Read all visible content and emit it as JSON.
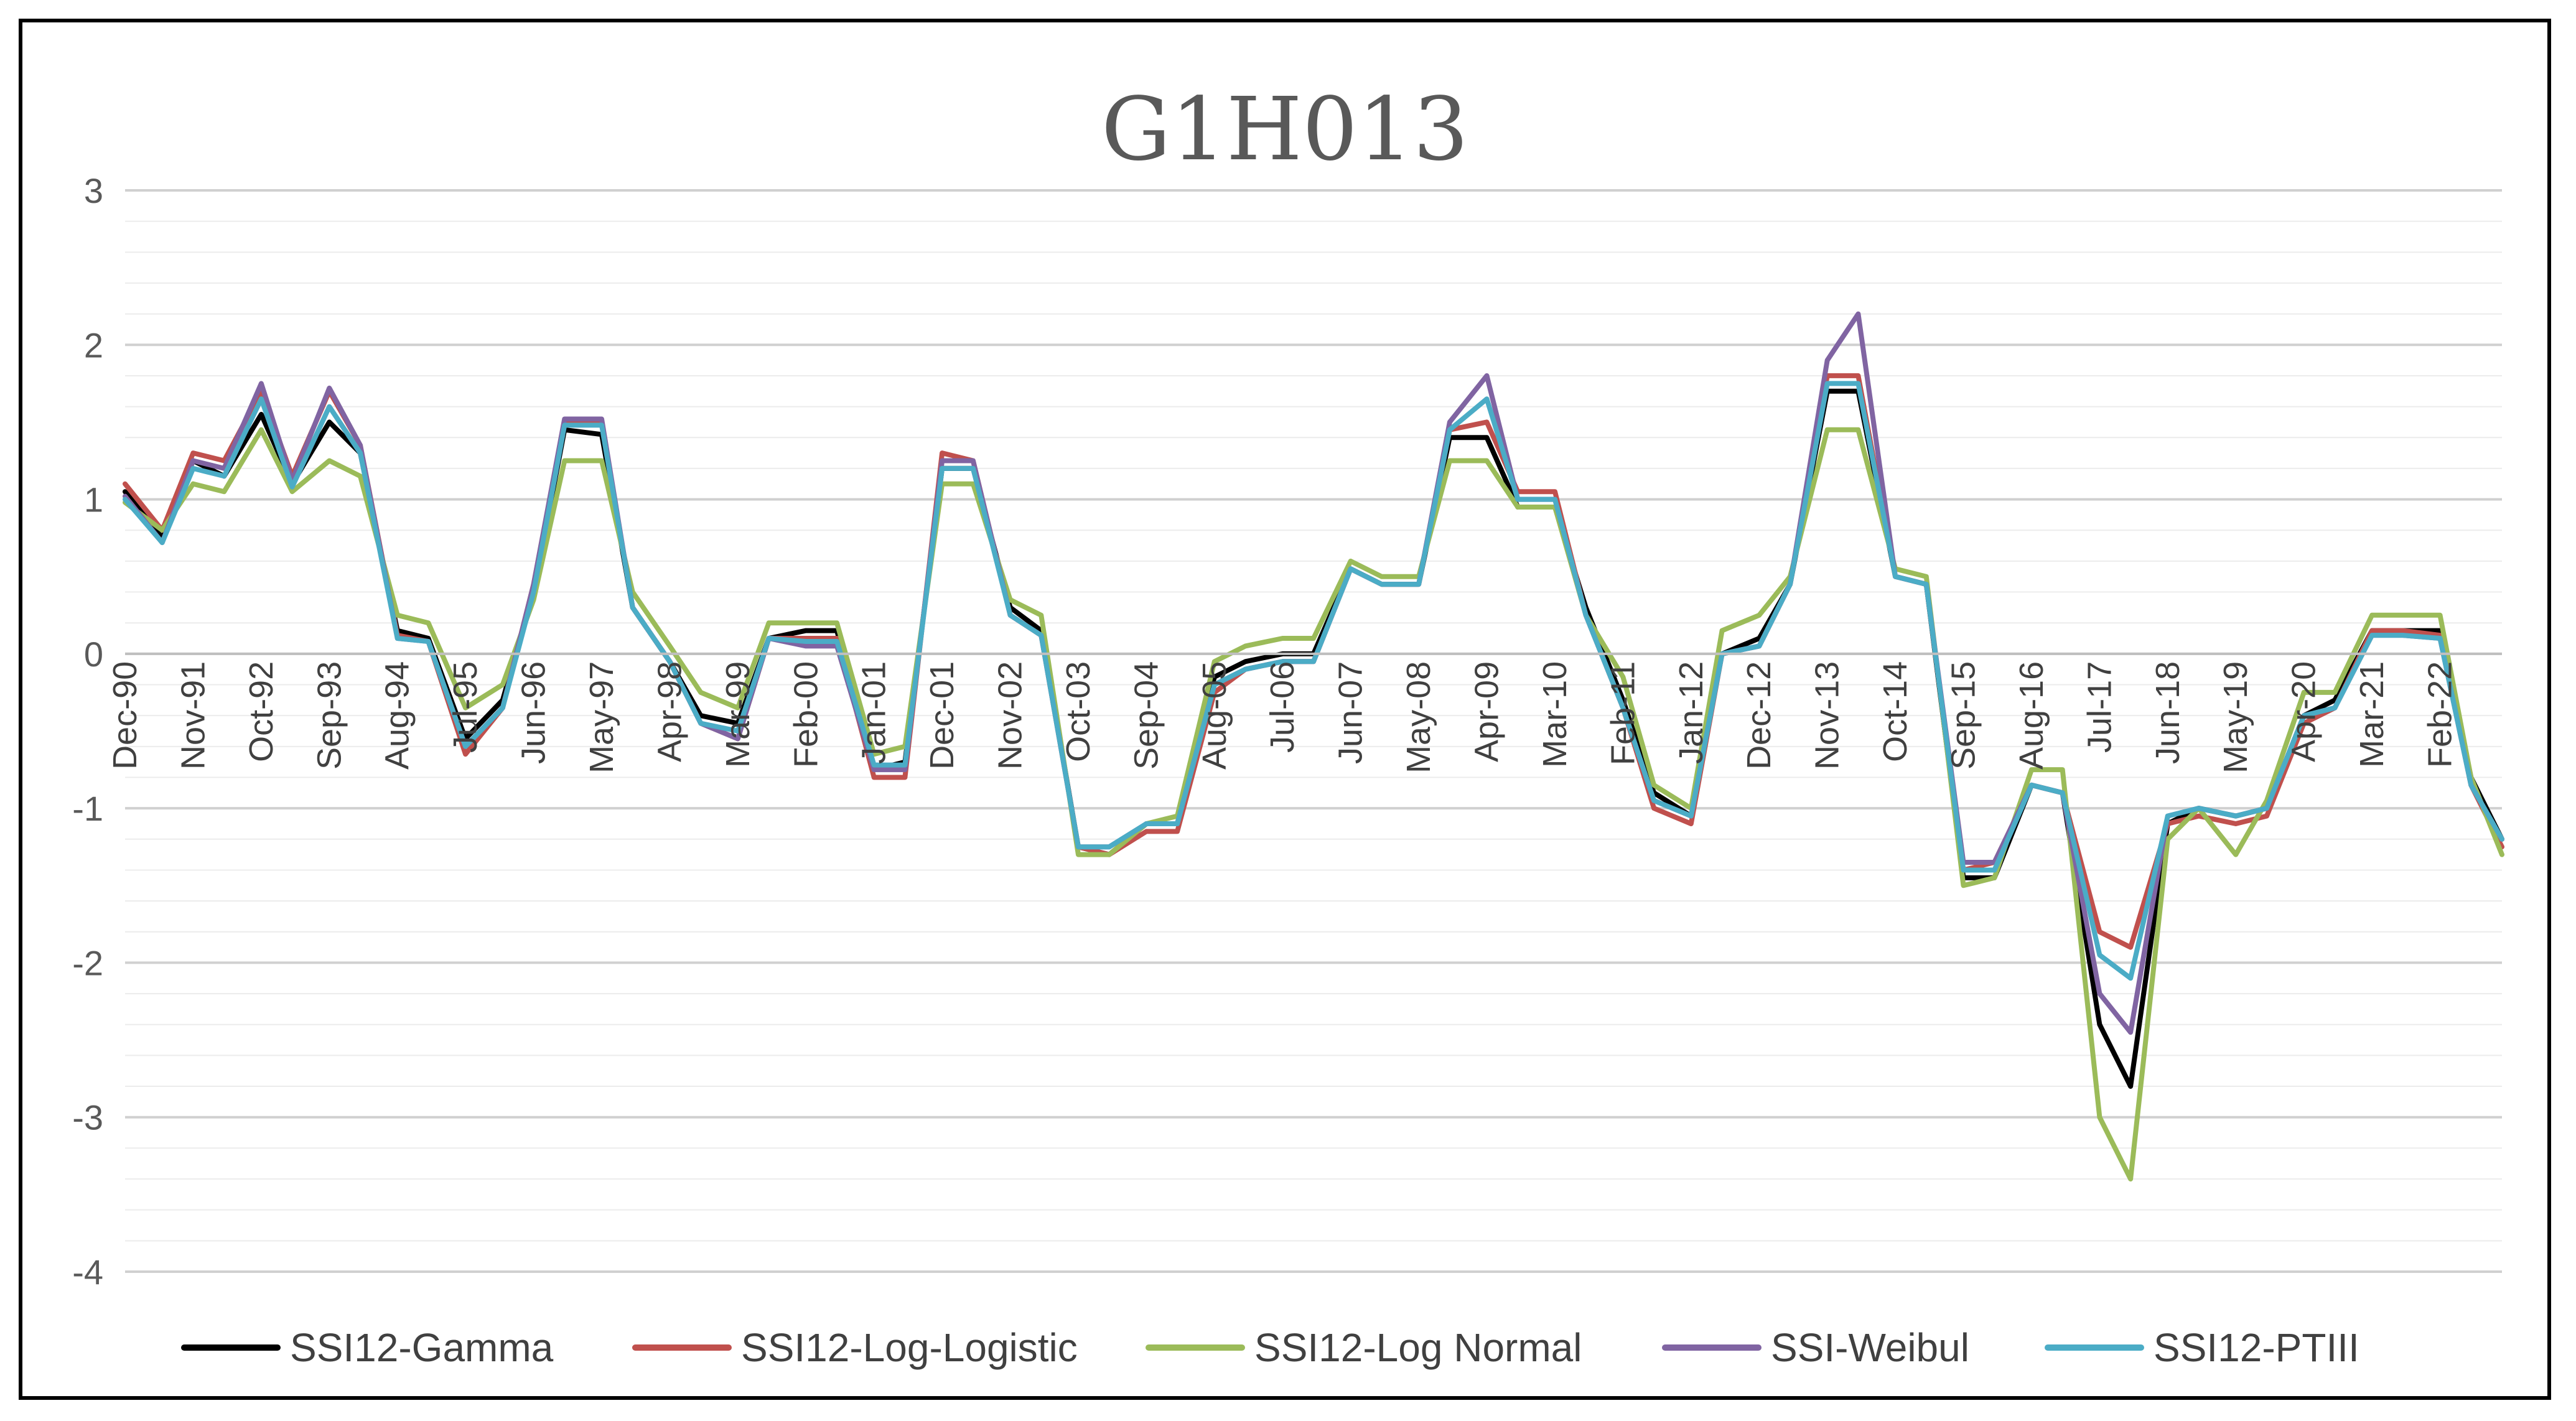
{
  "chart_data": {
    "type": "line",
    "title": "G1H013",
    "xlabel": "",
    "ylabel": "",
    "ylim": [
      -4,
      3
    ],
    "yticks": [
      3,
      2,
      1,
      0,
      -1,
      -2,
      -3,
      -4
    ],
    "grid": true,
    "legend_position": "bottom",
    "x": [
      "1990-12",
      "1991-06",
      "1991-11",
      "1992-04",
      "1992-10",
      "1993-03",
      "1993-09",
      "1994-02",
      "1994-08",
      "1995-01",
      "1995-07",
      "1996-01",
      "1996-06",
      "1996-11",
      "1997-05",
      "1997-10",
      "1998-04",
      "1998-09",
      "1999-03",
      "1999-08",
      "2000-02",
      "2000-07",
      "2001-01",
      "2001-06",
      "2001-12",
      "2002-05",
      "2002-11",
      "2003-04",
      "2003-10",
      "2004-03",
      "2004-09",
      "2005-02",
      "2005-08",
      "2006-01",
      "2006-07",
      "2006-12",
      "2007-06",
      "2007-11",
      "2008-05",
      "2008-10",
      "2009-04",
      "2009-09",
      "2010-03",
      "2010-08",
      "2011-02",
      "2011-07",
      "2012-01",
      "2012-06",
      "2012-12",
      "2013-05",
      "2013-11",
      "2014-04",
      "2014-10",
      "2015-03",
      "2015-09",
      "2016-02",
      "2016-08",
      "2017-01",
      "2017-07",
      "2017-12",
      "2018-06",
      "2018-11",
      "2019-05",
      "2019-10",
      "2020-04",
      "2020-09",
      "2021-03",
      "2021-08",
      "2022-02",
      "2022-07",
      "2022-12"
    ],
    "xtick_labels": [
      "Dec-90",
      "Nov-91",
      "Oct-92",
      "Sep-93",
      "Aug-94",
      "Jul-95",
      "Jun-96",
      "May-97",
      "Apr-98",
      "Mar-99",
      "Feb-00",
      "Jan-01",
      "Dec-01",
      "Nov-02",
      "Oct-03",
      "Sep-04",
      "Aug-05",
      "Jul-06",
      "Jun-07",
      "May-08",
      "Apr-09",
      "Mar-10",
      "Feb-11",
      "Jan-12",
      "Dec-12",
      "Nov-13",
      "Oct-14",
      "Sep-15",
      "Aug-16",
      "Jul-17",
      "Jun-18",
      "May-19",
      "Apr-20",
      "Mar-21",
      "Feb-22"
    ],
    "series": [
      {
        "name": "SSI12-Gamma",
        "color": "#000000",
        "values": [
          1.05,
          0.75,
          1.25,
          1.15,
          1.55,
          1.1,
          1.5,
          1.3,
          0.15,
          0.1,
          -0.55,
          -0.3,
          0.4,
          1.45,
          1.42,
          0.3,
          -0.05,
          -0.4,
          -0.45,
          0.1,
          0.15,
          0.15,
          -0.75,
          -0.7,
          1.2,
          1.2,
          0.3,
          0.15,
          -1.25,
          -1.3,
          -1.1,
          -1.1,
          -0.15,
          -0.05,
          0.0,
          0.0,
          0.55,
          0.45,
          0.45,
          1.4,
          1.4,
          0.95,
          0.95,
          0.3,
          -0.3,
          -0.9,
          -1.05,
          0.0,
          0.1,
          0.45,
          1.7,
          1.7,
          0.5,
          0.45,
          -1.45,
          -1.45,
          -0.85,
          -0.9,
          -2.4,
          -2.8,
          -1.1,
          -1.0,
          -1.05,
          -1.0,
          -0.4,
          -0.3,
          0.15,
          0.15,
          0.15,
          -0.8,
          -1.2
        ]
      },
      {
        "name": "SSI12-Log-Logistic",
        "color": "#c0504d",
        "values": [
          1.1,
          0.8,
          1.3,
          1.25,
          1.7,
          1.15,
          1.7,
          1.35,
          0.12,
          0.08,
          -0.65,
          -0.35,
          0.45,
          1.5,
          1.5,
          0.3,
          -0.05,
          -0.45,
          -0.55,
          0.1,
          0.1,
          0.1,
          -0.8,
          -0.8,
          1.3,
          1.25,
          0.25,
          0.12,
          -1.25,
          -1.3,
          -1.15,
          -1.15,
          -0.25,
          -0.1,
          -0.05,
          -0.05,
          0.55,
          0.45,
          0.45,
          1.45,
          1.5,
          1.05,
          1.05,
          0.25,
          -0.35,
          -1.0,
          -1.1,
          0.0,
          0.05,
          0.45,
          1.8,
          1.8,
          0.5,
          0.45,
          -1.4,
          -1.35,
          -0.85,
          -0.9,
          -1.8,
          -1.9,
          -1.1,
          -1.05,
          -1.1,
          -1.05,
          -0.45,
          -0.35,
          0.15,
          0.15,
          0.12,
          -0.85,
          -1.25
        ]
      },
      {
        "name": "SSI12-Log Normal",
        "color": "#9bbb59",
        "values": [
          0.98,
          0.8,
          1.1,
          1.05,
          1.45,
          1.05,
          1.25,
          1.15,
          0.25,
          0.2,
          -0.35,
          -0.2,
          0.35,
          1.25,
          1.25,
          0.4,
          0.05,
          -0.25,
          -0.35,
          0.2,
          0.2,
          0.2,
          -0.65,
          -0.6,
          1.1,
          1.1,
          0.35,
          0.25,
          -1.3,
          -1.3,
          -1.1,
          -1.05,
          -0.05,
          0.05,
          0.1,
          0.1,
          0.6,
          0.5,
          0.5,
          1.25,
          1.25,
          0.95,
          0.95,
          0.25,
          -0.15,
          -0.85,
          -1.0,
          0.15,
          0.25,
          0.5,
          1.45,
          1.45,
          0.55,
          0.5,
          -1.5,
          -1.45,
          -0.75,
          -0.75,
          -3.0,
          -3.4,
          -1.2,
          -1.0,
          -1.3,
          -0.95,
          -0.25,
          -0.25,
          0.25,
          0.25,
          0.25,
          -0.8,
          -1.3
        ]
      },
      {
        "name": "SSI-Weibul",
        "color": "#8064a2",
        "values": [
          1.02,
          0.72,
          1.25,
          1.2,
          1.75,
          1.12,
          1.72,
          1.35,
          0.1,
          0.08,
          -0.6,
          -0.35,
          0.45,
          1.52,
          1.52,
          0.3,
          -0.05,
          -0.45,
          -0.55,
          0.1,
          0.05,
          0.05,
          -0.75,
          -0.75,
          1.25,
          1.25,
          0.25,
          0.12,
          -1.25,
          -1.25,
          -1.1,
          -1.1,
          -0.2,
          -0.1,
          -0.05,
          -0.05,
          0.55,
          0.45,
          0.45,
          1.5,
          1.8,
          1.0,
          1.0,
          0.25,
          -0.35,
          -0.95,
          -1.05,
          0.0,
          0.05,
          0.45,
          1.9,
          2.2,
          0.5,
          0.45,
          -1.35,
          -1.35,
          -0.85,
          -0.9,
          -2.2,
          -2.45,
          -1.05,
          -1.0,
          -1.05,
          -1.0,
          -0.4,
          -0.35,
          0.12,
          0.12,
          0.1,
          -0.85,
          -1.2
        ]
      },
      {
        "name": "SSI12-PTIII",
        "color": "#4bacc6",
        "values": [
          1.0,
          0.72,
          1.2,
          1.15,
          1.65,
          1.08,
          1.6,
          1.3,
          0.1,
          0.08,
          -0.6,
          -0.35,
          0.4,
          1.48,
          1.48,
          0.3,
          -0.05,
          -0.45,
          -0.5,
          0.1,
          0.08,
          0.08,
          -0.72,
          -0.72,
          1.2,
          1.2,
          0.25,
          0.12,
          -1.25,
          -1.25,
          -1.1,
          -1.1,
          -0.2,
          -0.1,
          -0.05,
          -0.05,
          0.55,
          0.45,
          0.45,
          1.45,
          1.65,
          1.0,
          1.0,
          0.25,
          -0.35,
          -0.95,
          -1.05,
          0.0,
          0.05,
          0.45,
          1.75,
          1.75,
          0.5,
          0.45,
          -1.4,
          -1.4,
          -0.85,
          -0.9,
          -1.95,
          -2.1,
          -1.05,
          -1.0,
          -1.05,
          -1.0,
          -0.4,
          -0.35,
          0.12,
          0.12,
          0.1,
          -0.85,
          -1.2
        ]
      }
    ]
  }
}
